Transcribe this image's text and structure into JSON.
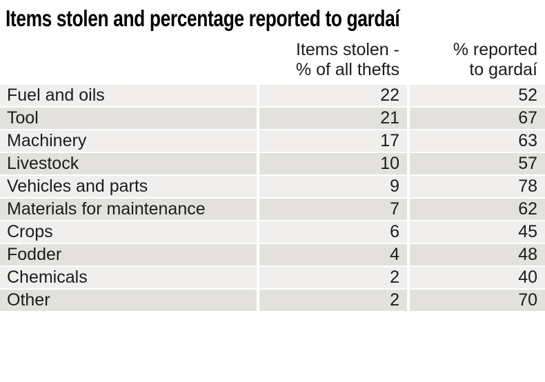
{
  "title": "Items stolen and percentage reported to gardaí",
  "table": {
    "headers": {
      "stolen": [
        "Items stolen -",
        "% of all thefts"
      ],
      "reported": [
        "% reported",
        "to gardaí"
      ]
    },
    "rows": [
      {
        "label": "Fuel and oils",
        "stolen": "22",
        "reported": "52"
      },
      {
        "label": "Tool",
        "stolen": "21",
        "reported": "67"
      },
      {
        "label": "Machinery",
        "stolen": "17",
        "reported": "63"
      },
      {
        "label": "Livestock",
        "stolen": "10",
        "reported": "57"
      },
      {
        "label": "Vehicles and parts",
        "stolen": "9",
        "reported": "78"
      },
      {
        "label": "Materials for maintenance",
        "stolen": "7",
        "reported": "62"
      },
      {
        "label": "Crops",
        "stolen": "6",
        "reported": "45"
      },
      {
        "label": "Fodder",
        "stolen": "4",
        "reported": "48"
      },
      {
        "label": "Chemicals",
        "stolen": "2",
        "reported": "40"
      },
      {
        "label": "Other",
        "stolen": "2",
        "reported": "70"
      }
    ]
  },
  "colors": {
    "row_light": "#f0efed",
    "row_dark": "#e2e1de",
    "text": "#1b1b1b",
    "title": "#000000",
    "background": "#ffffff"
  },
  "chart_data": {
    "type": "table",
    "title": "Items stolen and percentage reported to gardaí",
    "columns": [
      "Item",
      "Items stolen - % of all thefts",
      "% reported to gardaí"
    ],
    "rows": [
      [
        "Fuel and oils",
        22,
        52
      ],
      [
        "Tool",
        21,
        67
      ],
      [
        "Machinery",
        17,
        63
      ],
      [
        "Livestock",
        10,
        57
      ],
      [
        "Vehicles and parts",
        9,
        78
      ],
      [
        "Materials for maintenance",
        7,
        62
      ],
      [
        "Crops",
        6,
        45
      ],
      [
        "Fodder",
        4,
        48
      ],
      [
        "Chemicals",
        2,
        40
      ],
      [
        "Other",
        2,
        70
      ]
    ],
    "layout": {
      "row_striping": "alternating light/dark gray",
      "value_alignment": "right",
      "header_alignment": "right"
    }
  }
}
